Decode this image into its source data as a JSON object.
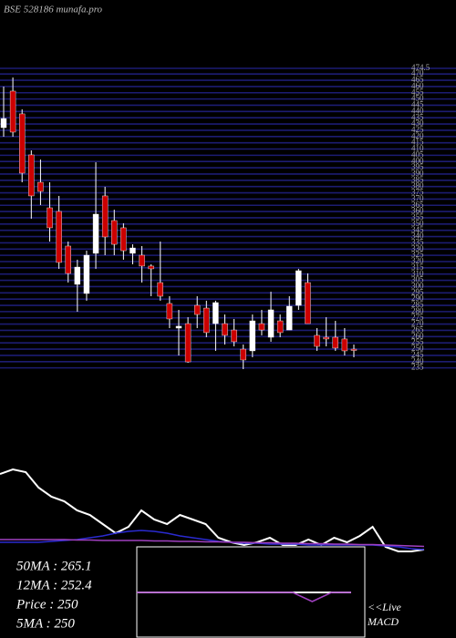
{
  "chart_data": [
    {
      "type": "candlestick",
      "title": "BSE 528186 munafa.pro",
      "up_color": "#ffffff",
      "down_color": "#cc0000",
      "grid": true,
      "grid_color": "#1c1c72",
      "ylim": [
        234,
        474.5
      ],
      "yticks": [
        235,
        240,
        245,
        250,
        255,
        260,
        265,
        270,
        275,
        280,
        285,
        290,
        295,
        300,
        305,
        310,
        315,
        320,
        325,
        330,
        335,
        340,
        345,
        350,
        355,
        360,
        365,
        370,
        375,
        380,
        385,
        390,
        395,
        400,
        405,
        410,
        415,
        420,
        425,
        430,
        435,
        440,
        445,
        450,
        455,
        460,
        465,
        470,
        {
          "value": 474.5,
          "label": "474.5"
        }
      ],
      "ohlc": [
        [
          427.1,
          459.9,
          419.8,
          434.4
        ],
        [
          456.3,
          467.2,
          419.8,
          423.5
        ],
        [
          438.1,
          441.7,
          383.4,
          390.7
        ],
        [
          405.3,
          408.9,
          354.3,
          372.5
        ],
        [
          383.4,
          401.6,
          365.2,
          376.1
        ],
        [
          363.0,
          383.4,
          336.0,
          347.0
        ],
        [
          360.1,
          372.5,
          314.2,
          319.3
        ],
        [
          332.4,
          336.0,
          303.2,
          310.5
        ],
        [
          301.8,
          321.5,
          279.9,
          315.6
        ],
        [
          294.5,
          328.7,
          288.7,
          325.1
        ],
        [
          326.6,
          399.4,
          314.2,
          357.9
        ],
        [
          372.5,
          379.8,
          325.1,
          339.7
        ],
        [
          352.8,
          361.5,
          325.1,
          333.8
        ],
        [
          347.0,
          350.6,
          321.5,
          328.7
        ],
        [
          326.6,
          333.8,
          317.8,
          330.9
        ],
        [
          325.1,
          332.4,
          303.2,
          316.4
        ],
        [
          316.4,
          317.8,
          292.3,
          314.2
        ],
        [
          303.2,
          336.0,
          288.7,
          292.3
        ],
        [
          286.5,
          292.3,
          266.8,
          274.1
        ],
        [
          266.8,
          281.4,
          244.9,
          268.3
        ],
        [
          270.4,
          275.5,
          239.1,
          239.8
        ],
        [
          285.0,
          292.3,
          266.8,
          277.7
        ],
        [
          282.8,
          288.7,
          259.5,
          263.2
        ],
        [
          270.4,
          288.7,
          248.6,
          287.2
        ],
        [
          270.4,
          277.7,
          253.7,
          261.0
        ],
        [
          265.3,
          274.1,
          252.2,
          255.9
        ],
        [
          250.0,
          253.7,
          234.0,
          241.3
        ],
        [
          248.6,
          277.7,
          243.5,
          272.6
        ],
        [
          270.4,
          281.4,
          261.0,
          265.3
        ],
        [
          259.5,
          295.9,
          255.9,
          281.4
        ],
        [
          272.6,
          277.7,
          259.5,
          263.2
        ],
        [
          265.3,
          292.3,
          265.3,
          284.3
        ],
        [
          285.0,
          314.2,
          281.4,
          312.7
        ],
        [
          303.2,
          310.5,
          270.4,
          270.4
        ],
        [
          261.0,
          266.8,
          248.6,
          252.2
        ],
        [
          259.5,
          275.5,
          252.2,
          258.1
        ],
        [
          259.5,
          272.6,
          248.6,
          250.8
        ],
        [
          258.1,
          266.8,
          244.9,
          248.6
        ],
        [
          250.0,
          253.7,
          243.5,
          250.0
        ]
      ]
    },
    {
      "type": "line",
      "ylim": [
        0,
        100
      ],
      "annotations": [
        "50MA : 265.1",
        "12MA : 252.4",
        "Price   : 250",
        "5MA : 250"
      ],
      "series": [
        {
          "color": "#ffffff",
          "values": [
            90,
            95,
            92,
            75,
            65,
            60,
            50,
            45,
            35,
            25,
            32,
            50,
            40,
            35,
            45,
            40,
            35,
            20,
            15,
            12,
            15,
            20,
            12,
            12,
            18,
            12,
            20,
            15,
            22,
            32,
            10,
            5,
            5,
            7
          ]
        },
        {
          "color": "#2a2ad0",
          "values": [
            15,
            15,
            15,
            15,
            16,
            17,
            18,
            20,
            22,
            25,
            27,
            28,
            27,
            25,
            22,
            20,
            18,
            16,
            15,
            14,
            14,
            13,
            13,
            13,
            12,
            12,
            12,
            12,
            12,
            12,
            11,
            10,
            8,
            7
          ]
        },
        {
          "color": "#a040c0",
          "values": [
            18,
            18,
            18,
            18,
            18,
            18,
            17.5,
            17.5,
            17,
            17,
            17,
            17,
            16.5,
            16.5,
            16,
            16,
            15.5,
            15.5,
            15,
            15,
            14.5,
            14.5,
            14,
            14,
            13.5,
            13.5,
            13,
            13,
            12.5,
            12.5,
            12,
            11.5,
            11,
            10.5
          ]
        }
      ]
    },
    {
      "type": "line",
      "title": "MACD",
      "annotation": "<<Live",
      "ylim": [
        -10,
        10
      ],
      "series": [
        {
          "color": "#ffffff",
          "values": [
            0,
            0,
            0,
            0,
            0,
            0,
            0,
            0,
            0,
            0,
            0,
            0
          ]
        },
        {
          "color": "#a040c0",
          "values": [
            0,
            0,
            0,
            0,
            0,
            0,
            0,
            0,
            0,
            -2,
            0,
            0
          ]
        }
      ]
    }
  ]
}
